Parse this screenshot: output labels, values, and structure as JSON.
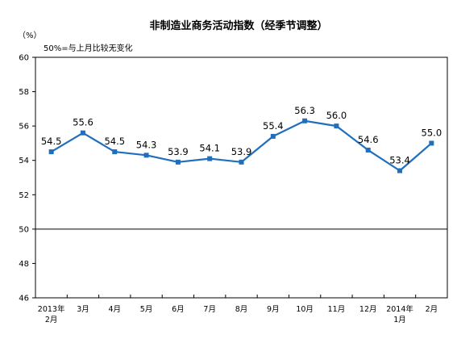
{
  "chart_data": {
    "type": "line",
    "title": "非制造业商务活动指数（经季节调整）",
    "unit_label": "（%）",
    "annotation": "50%=与上月比较无变化",
    "xlabel": "",
    "ylabel": "",
    "ylim": [
      46,
      60
    ],
    "yticks": [
      "60",
      "58",
      "56",
      "54",
      "52",
      "50",
      "48",
      "46"
    ],
    "ytick_values": [
      60,
      58,
      56,
      54,
      52,
      50,
      48,
      46
    ],
    "reference_line": 50,
    "categories": [
      [
        "2013年",
        "2月"
      ],
      [
        "3月"
      ],
      [
        "4月"
      ],
      [
        "5月"
      ],
      [
        "6月"
      ],
      [
        "7月"
      ],
      [
        "8月"
      ],
      [
        "9月"
      ],
      [
        "10月"
      ],
      [
        "11月"
      ],
      [
        "12月"
      ],
      [
        "2014年",
        "1月"
      ],
      [
        "2月"
      ]
    ],
    "series": [
      {
        "values": [
          54.5,
          55.6,
          54.5,
          54.3,
          53.9,
          54.1,
          53.9,
          55.4,
          56.3,
          56.0,
          54.6,
          53.4,
          55.0
        ],
        "labels": [
          "54.5",
          "55.6",
          "54.5",
          "54.3",
          "53.9",
          "54.1",
          "53.9",
          "55.4",
          "56.3",
          "56.0",
          "54.6",
          "53.4",
          "55.0"
        ],
        "color": "#1f6fbd"
      }
    ],
    "grid": false,
    "legend": "none"
  }
}
